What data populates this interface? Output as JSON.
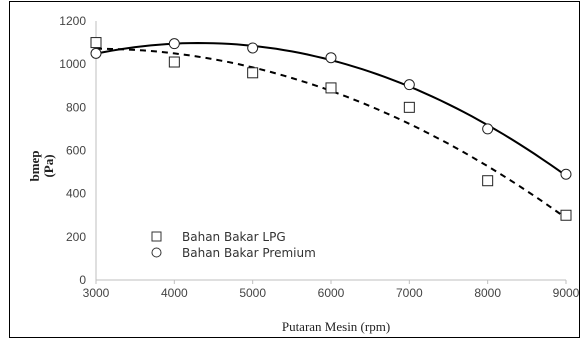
{
  "chart_data": {
    "type": "scatter",
    "title": "",
    "xlabel": "Putaran Mesin (rpm)",
    "ylabel": "bmep (Pa)",
    "ylabel_lines": [
      "bmep",
      "(Pa)"
    ],
    "xlim": [
      3000,
      9000
    ],
    "ylim": [
      0,
      1200
    ],
    "x_ticks": [
      "3000",
      "4000",
      "5000",
      "6000",
      "7000",
      "8000",
      "9000"
    ],
    "y_ticks": [
      "0",
      "200",
      "400",
      "600",
      "800",
      "1000",
      "1200"
    ],
    "grid": false,
    "legend_position": "lower-left",
    "series": [
      {
        "name": "Bahan Bakar LPG",
        "marker": "square",
        "trendline": "dashed",
        "color": "#000000",
        "x": [
          3000,
          4000,
          5000,
          6000,
          7000,
          8000,
          9000
        ],
        "y": [
          1100,
          1010,
          960,
          890,
          800,
          460,
          300
        ]
      },
      {
        "name": "Bahan Bakar Premium",
        "marker": "circle",
        "trendline": "solid",
        "color": "#000000",
        "x": [
          3000,
          4000,
          5000,
          6000,
          7000,
          8000,
          9000
        ],
        "y": [
          1050,
          1095,
          1075,
          1030,
          905,
          700,
          490
        ]
      }
    ]
  }
}
